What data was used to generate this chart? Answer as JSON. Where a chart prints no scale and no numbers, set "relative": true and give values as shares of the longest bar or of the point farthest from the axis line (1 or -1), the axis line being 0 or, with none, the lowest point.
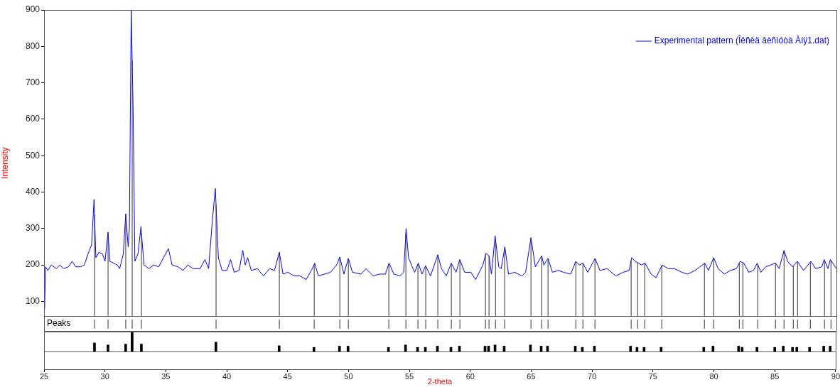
{
  "chart_data": [
    {
      "type": "line",
      "ylabel": "Intensity",
      "legend": "top right",
      "tick_labels": "y",
      "grid": false,
      "marker": "none",
      "line_style": "solid",
      "xlim": [
        25,
        90
      ],
      "ylim": [
        60,
        900
      ],
      "yticks": [
        100,
        200,
        300,
        400,
        500,
        600,
        700,
        800,
        900
      ],
      "annotations": [
        "Peaks"
      ],
      "x": [
        25.05,
        25.12,
        25.3,
        25.6,
        26.0,
        26.3,
        26.6,
        27.0,
        27.3,
        27.6,
        28.0,
        28.3,
        28.6,
        28.9,
        29.1,
        29.25,
        29.5,
        29.8,
        30.0,
        30.25,
        30.4,
        30.7,
        31.0,
        31.2,
        31.5,
        31.7,
        31.9,
        32.0,
        32.15,
        32.3,
        32.45,
        32.7,
        32.95,
        33.2,
        33.6,
        34.0,
        34.4,
        34.8,
        35.2,
        35.5,
        36.0,
        36.4,
        36.8,
        37.2,
        37.8,
        38.2,
        38.5,
        38.8,
        39.05,
        39.3,
        39.6,
        40.0,
        40.3,
        40.6,
        41.0,
        41.3,
        41.5,
        41.7,
        42.0,
        42.5,
        43.0,
        43.5,
        43.9,
        44.3,
        44.6,
        45.0,
        45.5,
        46.0,
        46.5,
        47.0,
        47.2,
        47.5,
        48.0,
        48.5,
        49.0,
        49.26,
        49.6,
        49.96,
        50.3,
        51.0,
        51.4,
        52.0,
        52.5,
        53.0,
        53.3,
        53.7,
        54.2,
        54.5,
        54.7,
        54.9,
        55.2,
        55.4,
        55.7,
        56.0,
        56.3,
        56.7,
        57.3,
        57.6,
        58.0,
        58.4,
        58.8,
        59.1,
        59.5,
        60.0,
        60.4,
        61.0,
        61.25,
        61.5,
        61.7,
        62.0,
        62.3,
        62.5,
        62.8,
        63.1,
        63.6,
        64.2,
        64.5,
        64.94,
        65.3,
        65.82,
        66.0,
        66.34,
        66.7,
        67.2,
        67.6,
        68.2,
        68.62,
        68.9,
        69.2,
        69.6,
        70.2,
        70.6,
        71.2,
        71.9,
        72.5,
        73.0,
        73.2,
        73.5,
        74.0,
        74.3,
        74.8,
        75.2,
        75.7,
        76.2,
        76.7,
        77.3,
        77.8,
        78.4,
        79.2,
        79.5,
        79.93,
        80.3,
        80.8,
        81.3,
        81.8,
        82.1,
        82.4,
        82.8,
        83.2,
        83.5,
        83.8,
        84.2,
        84.6,
        85.0,
        85.3,
        85.7,
        86.0,
        86.4,
        86.8,
        87.3,
        87.9,
        88.3,
        88.8,
        89.0,
        89.3,
        89.5,
        90.0
      ],
      "series": [
        {
          "name": "Experimental pattern (Îêñèä âèñìóòà Àíÿ1.dat)",
          "color": "#0000ff",
          "values": [
            80,
            195,
            185,
            200,
            190,
            200,
            190,
            195,
            210,
            195,
            195,
            200,
            230,
            255,
            380,
            220,
            235,
            230,
            210,
            290,
            210,
            205,
            200,
            190,
            230,
            340,
            250,
            300,
            900,
            640,
            210,
            230,
            305,
            200,
            190,
            200,
            195,
            220,
            245,
            200,
            195,
            185,
            200,
            190,
            190,
            215,
            190,
            320,
            410,
            220,
            185,
            185,
            215,
            180,
            185,
            240,
            200,
            220,
            185,
            190,
            170,
            190,
            185,
            235,
            175,
            180,
            170,
            170,
            160,
            190,
            205,
            170,
            175,
            180,
            200,
            222,
            175,
            218,
            180,
            175,
            190,
            170,
            175,
            175,
            205,
            175,
            170,
            180,
            300,
            220,
            195,
            180,
            205,
            175,
            198,
            170,
            228,
            190,
            170,
            205,
            180,
            215,
            180,
            180,
            160,
            200,
            232,
            225,
            175,
            280,
            195,
            190,
            250,
            175,
            180,
            170,
            180,
            275,
            195,
            225,
            200,
            218,
            180,
            185,
            180,
            175,
            210,
            200,
            205,
            180,
            218,
            185,
            190,
            170,
            180,
            185,
            220,
            210,
            200,
            205,
            175,
            165,
            200,
            190,
            190,
            180,
            175,
            185,
            205,
            185,
            220,
            190,
            175,
            185,
            190,
            210,
            205,
            180,
            185,
            205,
            180,
            195,
            200,
            205,
            190,
            240,
            210,
            195,
            210,
            185,
            210,
            190,
            195,
            215,
            190,
            215,
            190
          ]
        }
      ],
      "ref_lines": [
        {
          "axis": "x",
          "value": 29.14,
          "color": "#333333"
        },
        {
          "axis": "x",
          "value": 30.25,
          "color": "#333333"
        },
        {
          "axis": "x",
          "value": 31.7,
          "color": "#333333"
        },
        {
          "axis": "x",
          "value": 32.23,
          "color": "#333333"
        },
        {
          "axis": "x",
          "value": 32.99,
          "color": "#333333"
        },
        {
          "axis": "x",
          "value": 39.11,
          "color": "#333333"
        },
        {
          "axis": "x",
          "value": 44.3,
          "color": "#333333"
        },
        {
          "axis": "x",
          "value": 47.16,
          "color": "#333333"
        },
        {
          "axis": "x",
          "value": 49.26,
          "color": "#333333"
        },
        {
          "axis": "x",
          "value": 49.96,
          "color": "#333333"
        },
        {
          "axis": "x",
          "value": 53.28,
          "color": "#333333"
        },
        {
          "axis": "x",
          "value": 54.68,
          "color": "#333333"
        },
        {
          "axis": "x",
          "value": 55.67,
          "color": "#333333"
        },
        {
          "axis": "x",
          "value": 56.31,
          "color": "#333333"
        },
        {
          "axis": "x",
          "value": 57.3,
          "color": "#333333"
        },
        {
          "axis": "x",
          "value": 58.41,
          "color": "#333333"
        },
        {
          "axis": "x",
          "value": 59.11,
          "color": "#333333"
        },
        {
          "axis": "x",
          "value": 61.21,
          "color": "#333333"
        },
        {
          "axis": "x",
          "value": 61.5,
          "color": "#333333"
        },
        {
          "axis": "x",
          "value": 62.03,
          "color": "#333333"
        },
        {
          "axis": "x",
          "value": 62.78,
          "color": "#333333"
        },
        {
          "axis": "x",
          "value": 64.94,
          "color": "#333333"
        },
        {
          "axis": "x",
          "value": 65.82,
          "color": "#333333"
        },
        {
          "axis": "x",
          "value": 66.34,
          "color": "#333333"
        },
        {
          "axis": "x",
          "value": 68.62,
          "color": "#333333"
        },
        {
          "axis": "x",
          "value": 69.2,
          "color": "#333333"
        },
        {
          "axis": "x",
          "value": 70.19,
          "color": "#333333"
        },
        {
          "axis": "x",
          "value": 73.16,
          "color": "#333333"
        },
        {
          "axis": "x",
          "value": 73.69,
          "color": "#333333"
        },
        {
          "axis": "x",
          "value": 74.27,
          "color": "#333333"
        },
        {
          "axis": "x",
          "value": 75.67,
          "color": "#333333"
        },
        {
          "axis": "x",
          "value": 79.17,
          "color": "#333333"
        },
        {
          "axis": "x",
          "value": 79.93,
          "color": "#333333"
        },
        {
          "axis": "x",
          "value": 82.03,
          "color": "#333333"
        },
        {
          "axis": "x",
          "value": 82.32,
          "color": "#333333"
        },
        {
          "axis": "x",
          "value": 83.54,
          "color": "#333333"
        },
        {
          "axis": "x",
          "value": 85.0,
          "color": "#333333"
        },
        {
          "axis": "x",
          "value": 85.7,
          "color": "#333333"
        },
        {
          "axis": "x",
          "value": 86.46,
          "color": "#333333"
        },
        {
          "axis": "x",
          "value": 86.81,
          "color": "#333333"
        },
        {
          "axis": "x",
          "value": 87.86,
          "color": "#333333"
        },
        {
          "axis": "x",
          "value": 89.02,
          "color": "#333333"
        },
        {
          "axis": "x",
          "value": 89.55,
          "color": "#333333"
        }
      ]
    },
    {
      "type": "bar",
      "relative": true,
      "xlabel": "2-theta",
      "tick_labels": "x",
      "grid": false,
      "legend": false,
      "xlim": [
        25,
        90
      ],
      "xticks": [
        25,
        30,
        35,
        40,
        45,
        50,
        55,
        60,
        65,
        70,
        75,
        80,
        85,
        90
      ],
      "x": [
        29.14,
        30.25,
        31.7,
        32.23,
        32.99,
        39.11,
        44.3,
        47.16,
        49.26,
        49.96,
        53.28,
        54.68,
        55.67,
        56.31,
        57.3,
        58.41,
        59.11,
        61.21,
        61.5,
        62.03,
        62.78,
        64.94,
        65.82,
        66.34,
        68.62,
        69.2,
        70.19,
        73.16,
        73.69,
        74.27,
        75.67,
        79.17,
        79.93,
        82.03,
        82.32,
        83.54,
        85.0,
        85.7,
        86.46,
        86.81,
        87.86,
        89.02,
        89.55
      ],
      "color": "#000000",
      "values": [
        0.43,
        0.33,
        0.37,
        1,
        0.37,
        0.47,
        0.29,
        0.21,
        0.27,
        0.27,
        0.21,
        0.33,
        0.21,
        0.21,
        0.27,
        0.21,
        0.27,
        0.27,
        0.27,
        0.33,
        0.27,
        0.33,
        0.27,
        0.27,
        0.27,
        0.21,
        0.27,
        0.27,
        0.21,
        0.21,
        0.21,
        0.21,
        0.27,
        0.27,
        0.21,
        0.21,
        0.21,
        0.27,
        0.21,
        0.21,
        0.21,
        0.27,
        0.27
      ]
    }
  ]
}
